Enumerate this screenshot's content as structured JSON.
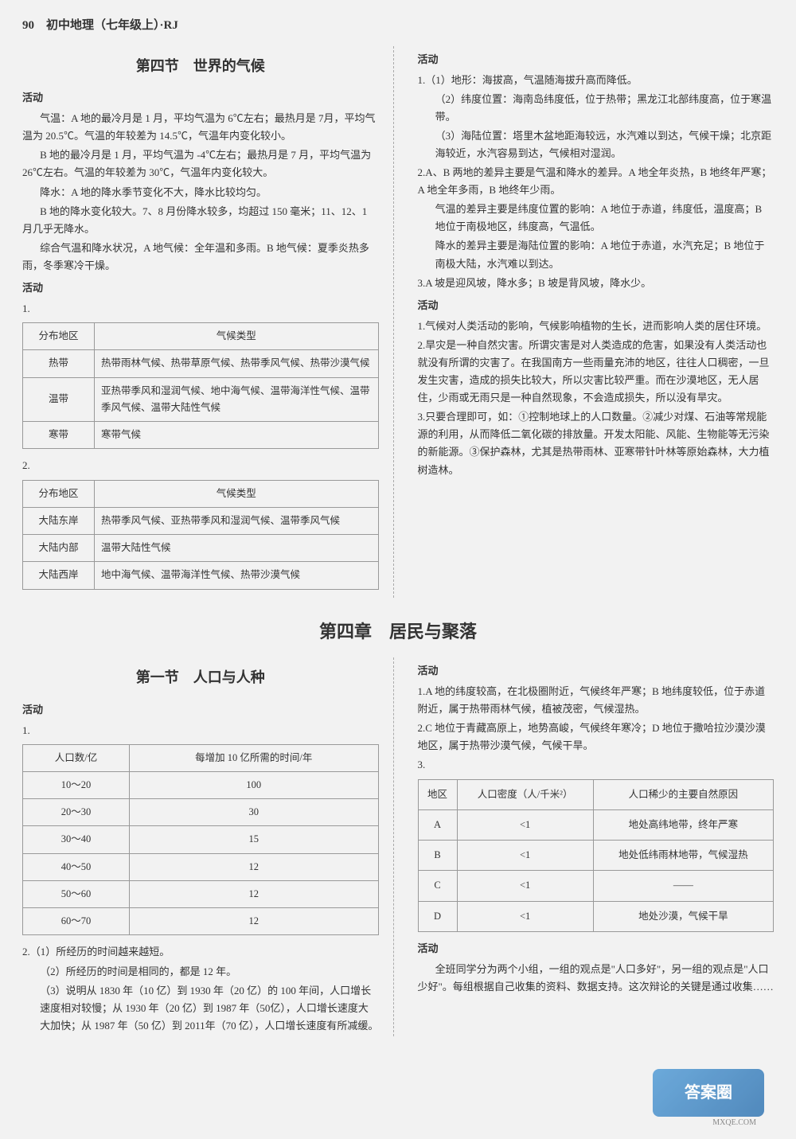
{
  "pageHeader": "90　初中地理（七年级上）·RJ",
  "section4Title": "第四节　世界的气候",
  "huodong": "活动",
  "leftActivity1": [
    "气温：A 地的最冷月是 1 月，平均气温为 6℃左右；最热月是 7月，平均气温为 20.5℃。气温的年较差为 14.5℃，气温年内变化较小。",
    "B 地的最冷月是 1 月，平均气温为 -4℃左右；最热月是 7 月，平均气温为 26℃左右。气温的年较差为 30℃，气温年内变化较大。",
    "降水：A 地的降水季节变化不大，降水比较均匀。",
    "B 地的降水变化较大。7、8 月份降水较多，均超过 150 毫米；11、12、1 月几乎无降水。",
    "综合气温和降水状况，A 地气候：全年温和多雨。B 地气候：夏季炎热多雨，冬季寒冷干燥。"
  ],
  "table1": {
    "headers": [
      "分布地区",
      "气候类型"
    ],
    "rows": [
      [
        "热带",
        "热带雨林气候、热带草原气候、热带季风气候、热带沙漠气候"
      ],
      [
        "温带",
        "亚热带季风和湿润气候、地中海气候、温带海洋性气候、温带季风气候、温带大陆性气候"
      ],
      [
        "寒带",
        "寒带气候"
      ]
    ]
  },
  "label1": "1.",
  "label2": "2.",
  "table2": {
    "headers": [
      "分布地区",
      "气候类型"
    ],
    "rows": [
      [
        "大陆东岸",
        "热带季风气候、亚热带季风和湿润气候、温带季风气候"
      ],
      [
        "大陆内部",
        "温带大陆性气候"
      ],
      [
        "大陆西岸",
        "地中海气候、温带海洋性气候、热带沙漠气候"
      ]
    ]
  },
  "rightCol1": {
    "items": [
      "1.（1）地形：海拔高，气温随海拔升高而降低。",
      "（2）纬度位置：海南岛纬度低，位于热带；黑龙江北部纬度高，位于寒温带。",
      "（3）海陆位置：塔里木盆地距海较远，水汽难以到达，气候干燥；北京距海较近，水汽容易到达，气候相对湿润。",
      "2.A、B 两地的差异主要是气温和降水的差异。A 地全年炎热，B 地终年严寒；A 地全年多雨，B 地终年少雨。",
      "气温的差异主要是纬度位置的影响：A 地位于赤道，纬度低，温度高；B 地位于南极地区，纬度高，气温低。",
      "降水的差异主要是海陆位置的影响：A 地位于赤道，水汽充足；B 地位于南极大陆，水汽难以到达。",
      "3.A 坡是迎风坡，降水多；B 坡是背风坡，降水少。"
    ]
  },
  "rightCol2": {
    "items": [
      "1.气候对人类活动的影响，气候影响植物的生长，进而影响人类的居住环境。",
      "2.旱灾是一种自然灾害。所谓灾害是对人类造成的危害，如果没有人类活动也就没有所谓的灾害了。在我国南方一些雨量充沛的地区，往往人口稠密，一旦发生灾害，造成的损失比较大，所以灾害比较严重。而在沙漠地区，无人居住，少雨或无雨只是一种自然现象，不会造成损失，所以没有旱灾。",
      "3.只要合理即可，如：①控制地球上的人口数量。②减少对煤、石油等常规能源的利用，从而降低二氧化碳的排放量。开发太阳能、风能、生物能等无污染的新能源。③保护森林，尤其是热带雨林、亚寒带针叶林等原始森林，大力植树造林。"
    ]
  },
  "chapter4Title": "第四章　居民与聚落",
  "section1Title": "第一节　人口与人种",
  "tablePop": {
    "headers": [
      "人口数/亿",
      "每增加 10 亿所需的时间/年"
    ],
    "rows": [
      [
        "10～20",
        "100"
      ],
      [
        "20～30",
        "30"
      ],
      [
        "30～40",
        "15"
      ],
      [
        "40～50",
        "12"
      ],
      [
        "50～60",
        "12"
      ],
      [
        "60～70",
        "12"
      ]
    ]
  },
  "q2Items": [
    "2.（1）所经历的时间越来越短。",
    "（2）所经历的时间是相同的，都是 12 年。",
    "（3）说明从 1830 年（10 亿）到 1930 年（20 亿）的 100 年间，人口增长速度相对较慢；从 1930 年（20 亿）到 1987 年（50亿），人口增长速度大大加快；从 1987 年（50 亿）到 2011年（70 亿），人口增长速度有所减缓。"
  ],
  "rightBottom1": [
    "1.A 地的纬度较高，在北极圈附近，气候终年严寒；B 地纬度较低，位于赤道附近，属于热带雨林气候，植被茂密，气候湿热。",
    "2.C 地位于青藏高原上，地势高峻，气候终年寒冷；D 地位于撒哈拉沙漠沙漠地区，属于热带沙漠气候，气候干旱。"
  ],
  "label3": "3.",
  "table3": {
    "headers": [
      "地区",
      "人口密度（人/千米²）",
      "人口稀少的主要自然原因"
    ],
    "rows": [
      [
        "A",
        "<1",
        "地处高纬地带，终年严寒"
      ],
      [
        "B",
        "<1",
        "地处低纬雨林地带，气候湿热"
      ],
      [
        "C",
        "<1",
        "——"
      ],
      [
        "D",
        "<1",
        "地处沙漠，气候干旱"
      ]
    ]
  },
  "bottomActivity": "全班同学分为两个小组，一组的观点是\"人口多好\"，另一组的观点是\"人口少好\"。每组根据自己收集的资料、数据支持。这次辩论的关键是通过收集……",
  "watermark": "答案圈",
  "url": "MXQE.COM"
}
